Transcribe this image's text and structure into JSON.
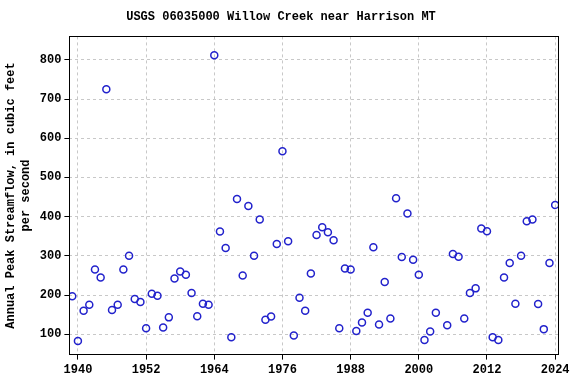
{
  "chart_data": {
    "type": "scatter",
    "title": "USGS 06035000 Willow Creek near Harrison MT",
    "y_label": [
      "Annual Peak Streamflow, in cubic feet",
      "per second"
    ],
    "x": [
      1939,
      1940,
      1941,
      1942,
      1943,
      1944,
      1945,
      1946,
      1947,
      1948,
      1949,
      1950,
      1951,
      1952,
      1953,
      1954,
      1955,
      1956,
      1957,
      1958,
      1959,
      1960,
      1961,
      1962,
      1963,
      1964,
      1965,
      1966,
      1967,
      1968,
      1969,
      1970,
      1971,
      1972,
      1973,
      1974,
      1975,
      1976,
      1977,
      1978,
      1979,
      1980,
      1981,
      1982,
      1983,
      1984,
      1985,
      1986,
      1987,
      1988,
      1989,
      1990,
      1991,
      1992,
      1993,
      1994,
      1995,
      1996,
      1997,
      1998,
      1999,
      2000,
      2001,
      2002,
      2003,
      2005,
      2006,
      2007,
      2008,
      2009,
      2010,
      2011,
      2012,
      2013,
      2014,
      2015,
      2016,
      2017,
      2018,
      2019,
      2020,
      2021,
      2022,
      2023,
      2024
    ],
    "values": [
      197,
      83,
      160,
      175,
      265,
      245,
      725,
      162,
      175,
      265,
      300,
      190,
      182,
      115,
      203,
      198,
      117,
      143,
      242,
      260,
      252,
      205,
      146,
      178,
      175,
      812,
      362,
      320,
      92,
      445,
      250,
      427,
      300,
      393,
      137,
      145,
      330,
      567,
      337,
      97,
      193,
      160,
      255,
      353,
      373,
      360,
      340,
      115,
      268,
      265,
      108,
      130,
      155,
      322,
      125,
      233,
      140,
      447,
      297,
      408,
      290,
      252,
      85,
      107,
      155,
      123,
      305,
      298,
      140,
      205,
      217,
      370,
      363,
      92,
      85,
      245,
      282,
      178,
      300,
      388,
      393,
      177,
      113,
      282,
      430
    ],
    "color": "#2222cc",
    "marker": "circle-open",
    "xlim": [
      1938.5,
      2024.5
    ],
    "xticks": [
      1940,
      1952,
      1964,
      1976,
      1988,
      2000,
      2012,
      2024
    ],
    "ylim": [
      48,
      860
    ],
    "yticks": [
      100,
      200,
      300,
      400,
      500,
      600,
      700,
      800
    ],
    "grid": true
  }
}
